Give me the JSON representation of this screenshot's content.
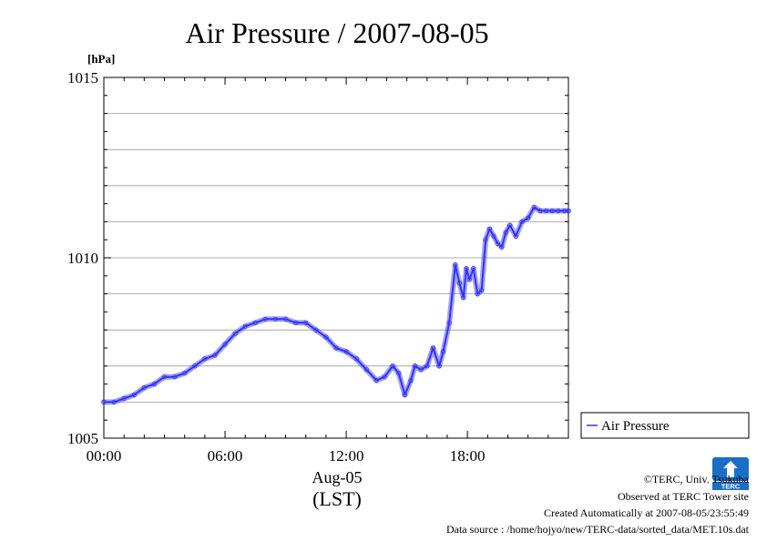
{
  "chart_data": {
    "type": "line",
    "title": "Air Pressure / 2007-08-05",
    "yunit": "[hPa]",
    "ylim": [
      1005,
      1015
    ],
    "yticks": [
      "1005",
      "1010",
      "1015"
    ],
    "xlim": [
      0,
      23
    ],
    "xticks": [
      {
        "hour": 0,
        "label": "00:00"
      },
      {
        "hour": 6,
        "label": "06:00"
      },
      {
        "hour": 12,
        "label": "12:00"
      },
      {
        "hour": 18,
        "label": "18:00"
      }
    ],
    "xdate": "Aug-05",
    "xlabel": "(LST)",
    "grid": true,
    "legend_position": "right-bottom",
    "series": [
      {
        "name": "Air Pressure",
        "color": "#3333ff",
        "x": [
          0,
          0.5,
          1,
          1.5,
          2,
          2.5,
          3,
          3.5,
          4,
          4.5,
          5,
          5.5,
          6,
          6.5,
          7,
          7.5,
          8,
          8.5,
          9,
          9.5,
          10,
          10.5,
          11,
          11.5,
          12,
          12.5,
          13,
          13.5,
          13.9,
          14.3,
          14.6,
          14.9,
          15.2,
          15.4,
          15.7,
          16.0,
          16.3,
          16.6,
          16.8,
          17.1,
          17.4,
          17.6,
          17.8,
          17.95,
          18.1,
          18.3,
          18.5,
          18.7,
          18.9,
          19.1,
          19.3,
          19.5,
          19.7,
          19.9,
          20.1,
          20.4,
          20.7,
          21.0,
          21.3,
          21.6,
          21.9,
          22.2,
          22.5,
          22.8,
          23.0
        ],
        "y": [
          1006.0,
          1006.0,
          1006.1,
          1006.2,
          1006.4,
          1006.5,
          1006.7,
          1006.7,
          1006.8,
          1007.0,
          1007.2,
          1007.3,
          1007.6,
          1007.9,
          1008.1,
          1008.2,
          1008.3,
          1008.3,
          1008.3,
          1008.2,
          1008.2,
          1008.0,
          1007.8,
          1007.5,
          1007.4,
          1007.2,
          1006.9,
          1006.6,
          1006.7,
          1007.0,
          1006.8,
          1006.2,
          1006.6,
          1007.0,
          1006.9,
          1007.0,
          1007.5,
          1007.0,
          1007.4,
          1008.2,
          1009.8,
          1009.3,
          1008.9,
          1009.7,
          1009.4,
          1009.7,
          1009.0,
          1009.1,
          1010.5,
          1010.8,
          1010.6,
          1010.4,
          1010.3,
          1010.7,
          1010.9,
          1010.6,
          1011.0,
          1011.1,
          1011.4,
          1011.3,
          1011.3,
          1011.3,
          1011.3,
          1011.3,
          1011.3
        ]
      }
    ]
  },
  "footer": {
    "copyright": "©TERC, Univ. Tsukuba",
    "observed": "Observed at TERC Tower site",
    "created": "Created Automatically at 2007-08-05/23:55:49",
    "source": "Data source : /home/hojyo/new/TERC-data/sorted_data/MET.10s.dat",
    "logo_text": "TERC"
  }
}
